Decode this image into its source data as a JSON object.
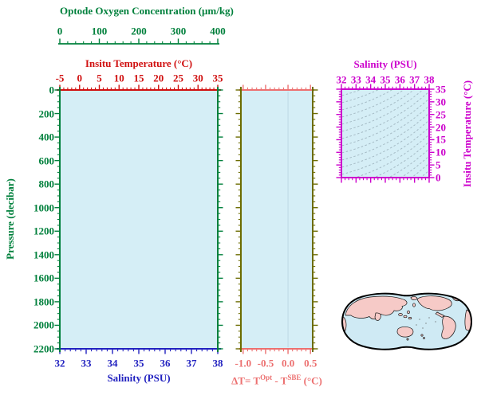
{
  "colors": {
    "green": "#00803c",
    "red": "#d01010",
    "blue": "#2222c0",
    "pink": "#ec7070",
    "olive": "#6c6c00",
    "magenta": "#cc00cc",
    "plot_fill": "#d5eef6",
    "contour_line": "#a4bac4",
    "zero_line": "#bcd9e4",
    "map_land": "#f6cac7",
    "map_ocean": "#cfeaf4",
    "map_outline": "#000000"
  },
  "profile_plot": {
    "oxygen_axis": {
      "title": "Optode Oxygen Concentration (μm/kg)",
      "tick_labels": [
        "0",
        "100",
        "200",
        "300",
        "400"
      ],
      "min": 0,
      "max": 400,
      "minor_step": 20
    },
    "temperature_axis": {
      "title": "Insitu Temperature (°C)",
      "tick_labels": [
        "-5",
        "0",
        "5",
        "10",
        "15",
        "20",
        "25",
        "30",
        "35"
      ],
      "min": -5,
      "max": 35,
      "minor_step": 1
    },
    "pressure_axis": {
      "title": "Pressure (decibar)",
      "tick_labels": [
        "0",
        "200",
        "400",
        "600",
        "800",
        "1000",
        "1200",
        "1400",
        "1600",
        "1800",
        "2000",
        "2200"
      ],
      "min": 0,
      "max": 2200,
      "major_step": 200,
      "minor_step": 50
    },
    "salinity_axis": {
      "title": "Salinity (PSU)",
      "tick_labels": [
        "32",
        "33",
        "34",
        "35",
        "36",
        "37",
        "38"
      ],
      "min": 32,
      "max": 38,
      "minor_step": 0.2
    }
  },
  "delta_plot": {
    "x_axis": {
      "title_prefix": "ΔT= T",
      "title_sup1": "Opt",
      "title_mid": " - T",
      "title_sup2": "SBE",
      "title_suffix": " (°C)",
      "tick_labels": [
        "-1.0",
        "-0.5",
        "0.0",
        "0.5"
      ],
      "min": -1.05,
      "max": 0.55,
      "minor_step": 0.1,
      "zero_reference": 0.0
    },
    "y_axis": {
      "min": 0,
      "max": 2200,
      "major_step": 200,
      "minor_step": 50
    }
  },
  "ts_plot": {
    "salinity_axis": {
      "title": "Salinity (PSU)",
      "tick_labels": [
        "32",
        "33",
        "34",
        "35",
        "36",
        "37",
        "38"
      ],
      "min": 32,
      "max": 38,
      "minor_step": 0.25
    },
    "temperature_axis": {
      "title": "Insitu Temperature (°C)",
      "tick_labels": [
        "35",
        "30",
        "25",
        "20",
        "15",
        "10",
        "5",
        "0"
      ],
      "min": 0,
      "max": 35,
      "major_step": 5,
      "minor_step": 1
    }
  },
  "chart_data": [
    {
      "type": "line",
      "panel": "pressure-profile",
      "y_axis": {
        "label": "Pressure (decibar)",
        "range": [
          0,
          2200
        ],
        "inverted": true,
        "ticks": [
          0,
          200,
          400,
          600,
          800,
          1000,
          1200,
          1400,
          1600,
          1800,
          2000,
          2200
        ]
      },
      "x_axes": [
        {
          "label": "Optode Oxygen Concentration (μm/kg)",
          "range": [
            0,
            400
          ],
          "ticks": [
            0,
            100,
            200,
            300,
            400
          ]
        },
        {
          "label": "Insitu Temperature (°C)",
          "range": [
            -5,
            35
          ],
          "ticks": [
            -5,
            0,
            5,
            10,
            15,
            20,
            25,
            30,
            35
          ]
        },
        {
          "label": "Salinity (PSU)",
          "range": [
            32,
            38
          ],
          "ticks": [
            32,
            33,
            34,
            35,
            36,
            37,
            38
          ]
        }
      ],
      "series": []
    },
    {
      "type": "line",
      "panel": "temperature-difference-profile",
      "x_axis": {
        "label": "ΔT= TOpt - TSBE (°C)",
        "range": [
          -1.05,
          0.55
        ],
        "ticks": [
          -1.0,
          -0.5,
          0.0,
          0.5
        ]
      },
      "y_axis": {
        "label": "Pressure (decibar)",
        "range": [
          0,
          2200
        ],
        "inverted": true
      },
      "reference_line_x": 0.0,
      "series": []
    },
    {
      "type": "scatter",
      "panel": "ts-diagram",
      "x_axis": {
        "label": "Salinity (PSU)",
        "range": [
          32,
          38
        ],
        "ticks": [
          32,
          33,
          34,
          35,
          36,
          37,
          38
        ]
      },
      "y_axis": {
        "label": "Insitu Temperature (°C)",
        "range": [
          0,
          35
        ],
        "ticks": [
          0,
          5,
          10,
          15,
          20,
          25,
          30,
          35
        ]
      },
      "background_contours": "isopycnals",
      "series": []
    },
    {
      "type": "map",
      "panel": "world-map-pacific-centered",
      "series": []
    }
  ]
}
